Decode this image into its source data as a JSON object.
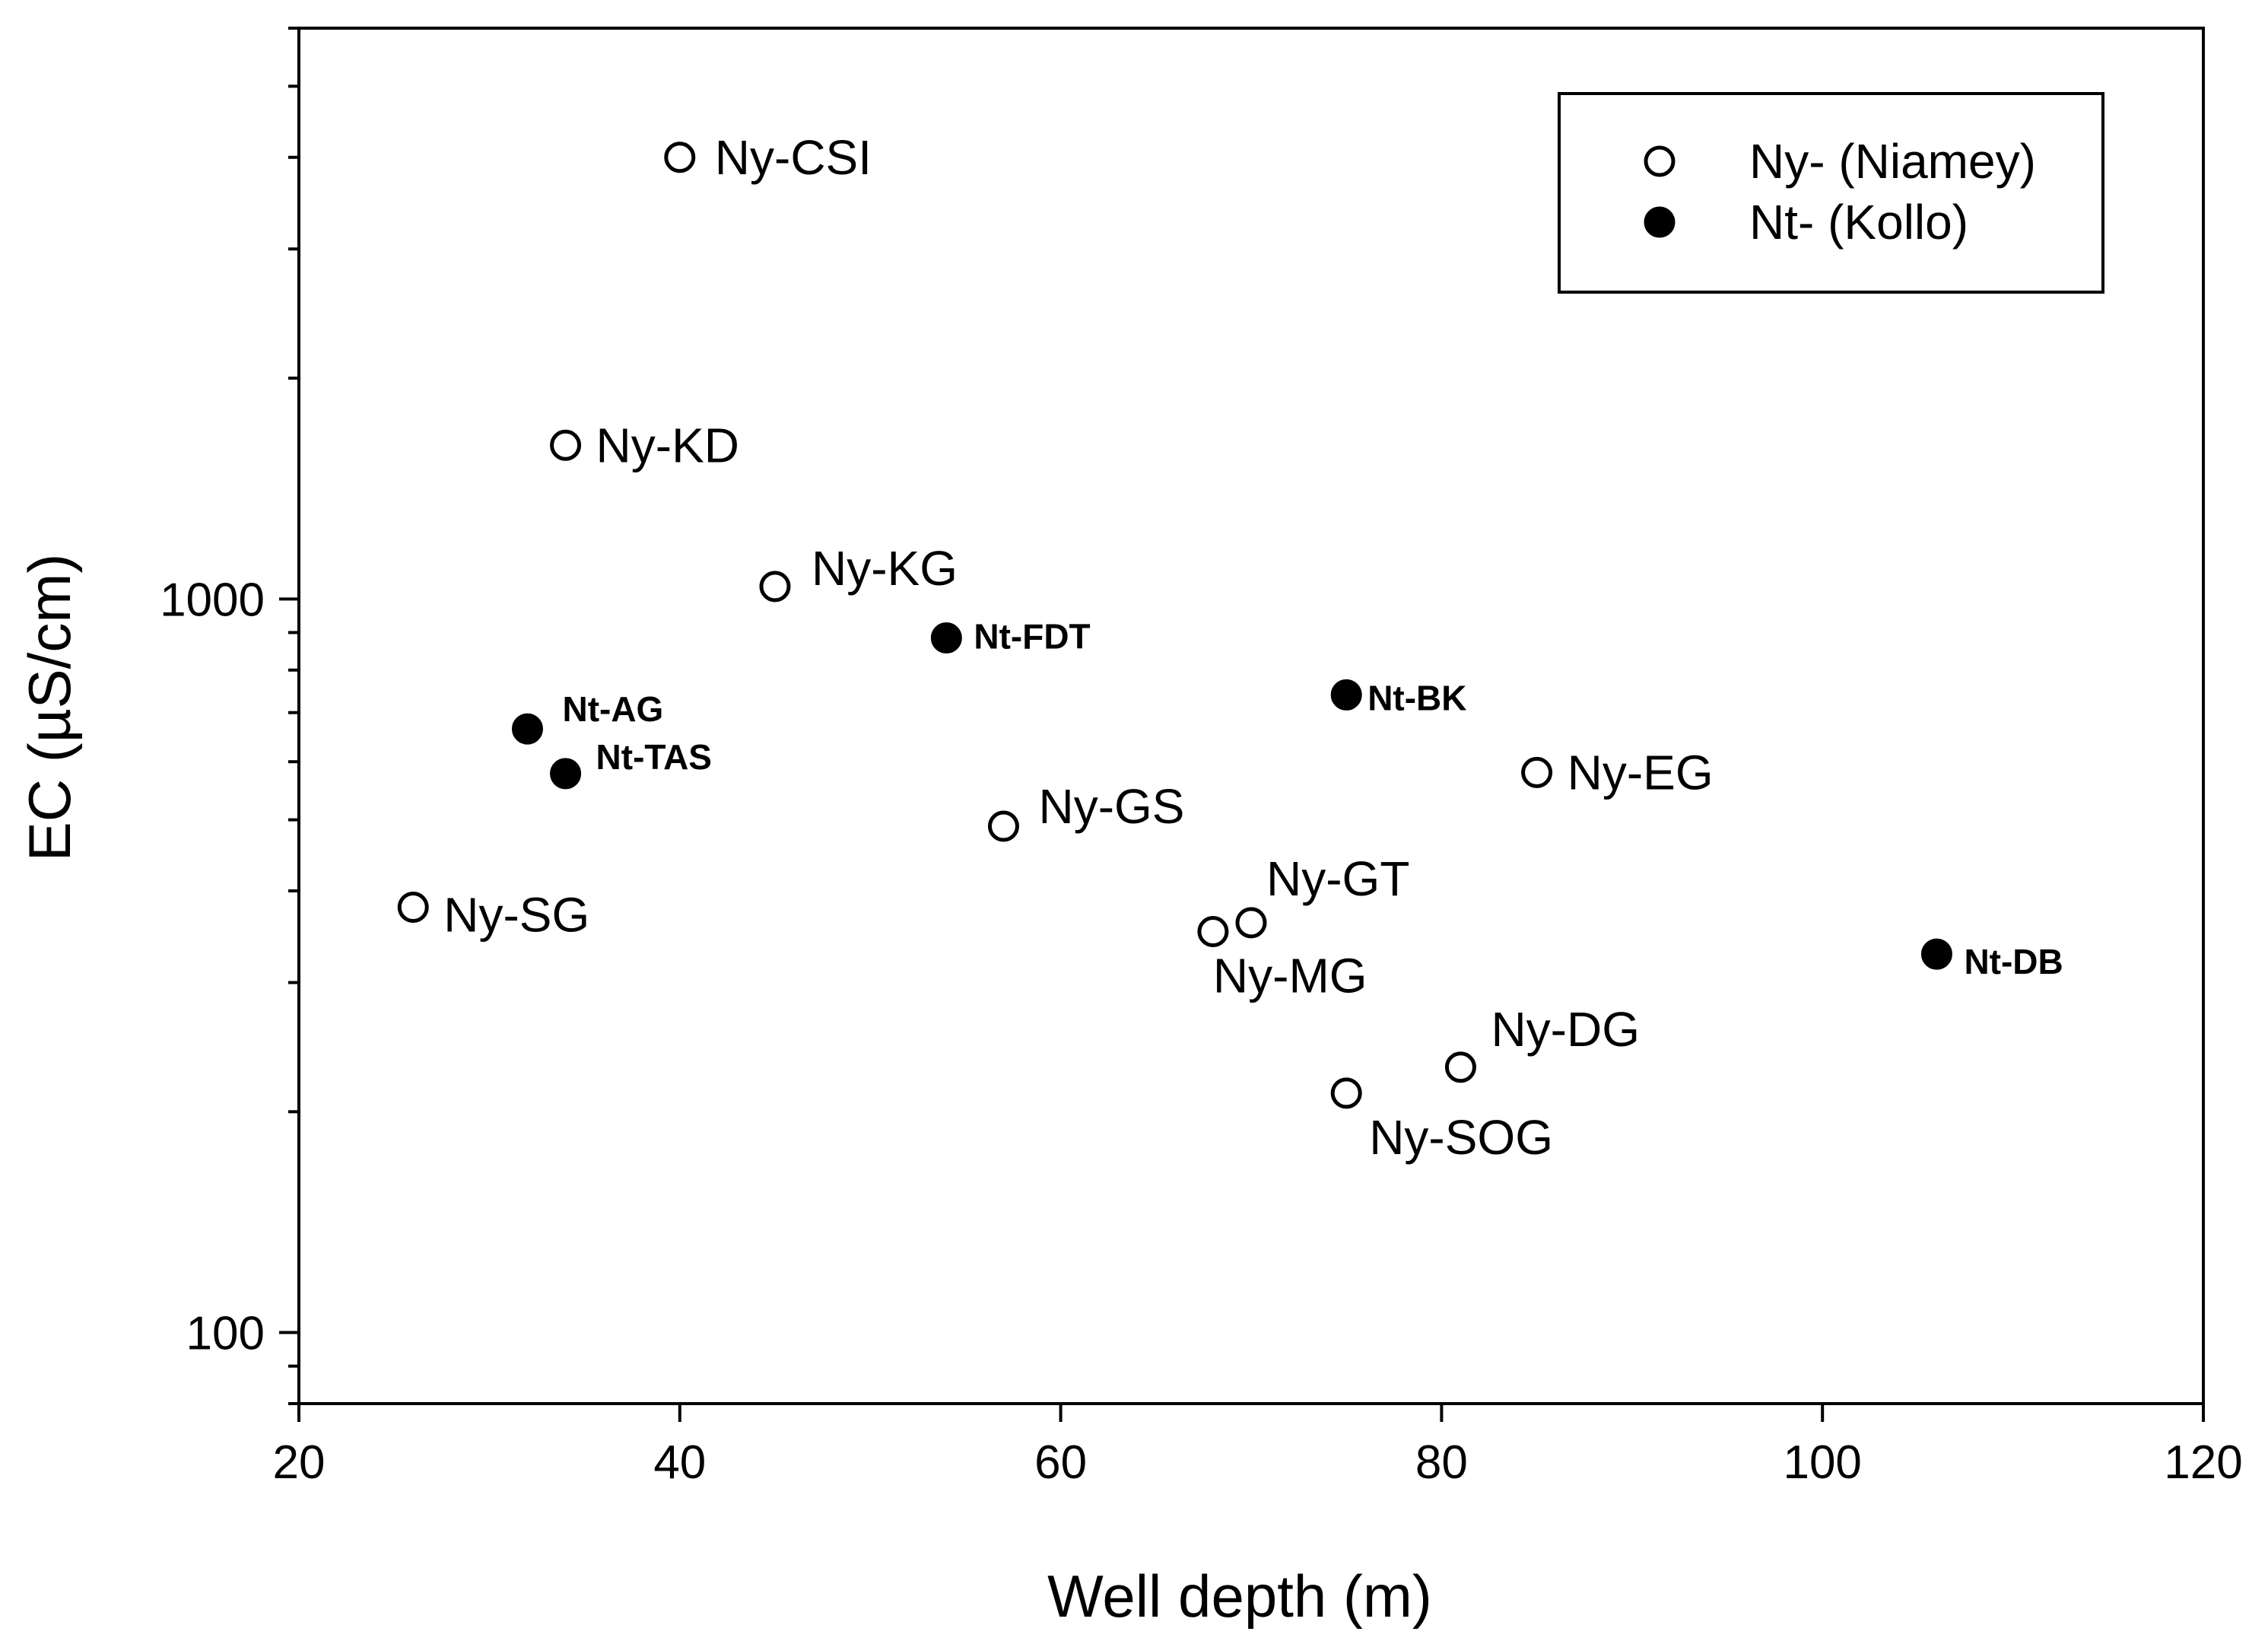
{
  "chart_data": {
    "type": "scatter",
    "title": "",
    "xlabel": "Well depth (m)",
    "ylabel": "EC (µS/cm)",
    "xlim": [
      20,
      120
    ],
    "ylim": [
      80,
      6000
    ],
    "yscale": "log",
    "xticks": [
      20,
      40,
      60,
      80,
      100,
      120
    ],
    "xtick_labels": [
      "20",
      "40",
      "60",
      "80",
      "100",
      "120"
    ],
    "ytick_labels": [
      {
        "value": 100,
        "label": "100"
      },
      {
        "value": 1000,
        "label": "1000"
      }
    ],
    "grid": false,
    "legend_position": "top-right",
    "series": [
      {
        "name": "Ny- (Niamey)",
        "marker": "open-circle",
        "points": [
          {
            "x": 40,
            "y": 4000,
            "label": "Ny-CSI"
          },
          {
            "x": 34,
            "y": 1620,
            "label": "Ny-KD"
          },
          {
            "x": 45,
            "y": 1040,
            "label": "Ny-KG"
          },
          {
            "x": 57,
            "y": 490,
            "label": "Ny-GS"
          },
          {
            "x": 85,
            "y": 580,
            "label": "Ny-EG"
          },
          {
            "x": 26,
            "y": 380,
            "label": "Ny-SG"
          },
          {
            "x": 70,
            "y": 362,
            "label": "Ny-GT"
          },
          {
            "x": 68,
            "y": 352,
            "label": "Ny-MG"
          },
          {
            "x": 81,
            "y": 230,
            "label": "Ny-DG"
          },
          {
            "x": 75,
            "y": 212,
            "label": "Ny-SOG"
          }
        ]
      },
      {
        "name": "Nt- (Kollo)",
        "marker": "filled-circle",
        "points": [
          {
            "x": 54,
            "y": 885,
            "label": "Nt-FDT"
          },
          {
            "x": 75,
            "y": 740,
            "label": "Nt-BK"
          },
          {
            "x": 32,
            "y": 665,
            "label": "Nt-AG"
          },
          {
            "x": 34,
            "y": 578,
            "label": "Nt-TAS"
          },
          {
            "x": 106,
            "y": 328,
            "label": "Nt-DB"
          }
        ]
      }
    ]
  }
}
